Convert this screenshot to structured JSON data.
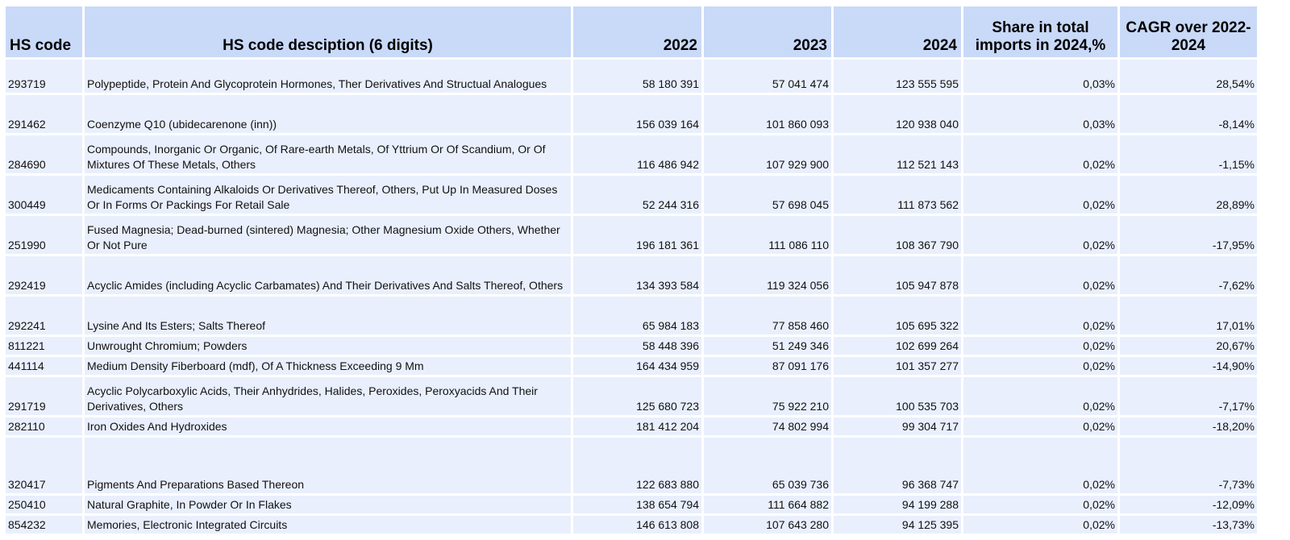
{
  "header": {
    "hs_code": "HS code",
    "description": "HS code desciption (6 digits)",
    "y2022": "2022",
    "y2023": "2023",
    "y2024": "2024",
    "share": "Share in total imports in 2024,%",
    "cagr": "CAGR over 2022-2024"
  },
  "rows": [
    {
      "code": "293719",
      "desc": "Polypeptide, Protein And Glycoprotein Hormones, Ther Derivatives And Structual Analogues",
      "v2022": "58 180 391",
      "v2023": "57 041 474",
      "v2024": "123 555 595",
      "share": "0,03%",
      "cagr": "28,54%"
    },
    {
      "code": "291462",
      "desc": "Coenzyme Q10 (ubidecarenone (inn))",
      "v2022": "156 039 164",
      "v2023": "101 860 093",
      "v2024": "120 938 040",
      "share": "0,03%",
      "cagr": "-8,14%"
    },
    {
      "code": "284690",
      "desc": "Compounds, Inorganic Or Organic, Of Rare-earth Metals, Of Yttrium Or Of Scandium, Or Of Mixtures Of These Metals, Others",
      "v2022": "116 486 942",
      "v2023": "107 929 900",
      "v2024": "112 521 143",
      "share": "0,02%",
      "cagr": "-1,15%"
    },
    {
      "code": "300449",
      "desc": "Medicaments Containing Alkaloids Or Derivatives Thereof, Others, Put Up In Measured Doses Or In Forms Or Packings For Retail Sale",
      "v2022": "52 244 316",
      "v2023": "57 698 045",
      "v2024": "111 873 562",
      "share": "0,02%",
      "cagr": "28,89%"
    },
    {
      "code": "251990",
      "desc": "Fused Magnesia; Dead-burned (sintered) Magnesia; Other Magnesium Oxide Others, Whether Or Not Pure",
      "v2022": "196 181 361",
      "v2023": "111 086 110",
      "v2024": "108 367 790",
      "share": "0,02%",
      "cagr": "-17,95%"
    },
    {
      "code": "292419",
      "desc": "Acyclic Amides (including Acyclic Carbamates) And Their Derivatives And Salts Thereof, Others",
      "v2022": "134 393 584",
      "v2023": "119 324 056",
      "v2024": "105 947 878",
      "share": "0,02%",
      "cagr": "-7,62%"
    },
    {
      "code": "292241",
      "desc": "Lysine And Its Esters; Salts Thereof",
      "v2022": "65 984 183",
      "v2023": "77 858 460",
      "v2024": "105 695 322",
      "share": "0,02%",
      "cagr": "17,01%"
    },
    {
      "code": "811221",
      "desc": "Unwrought Chromium; Powders",
      "v2022": "58 448 396",
      "v2023": "51 249 346",
      "v2024": "102 699 264",
      "share": "0,02%",
      "cagr": "20,67%"
    },
    {
      "code": "441114",
      "desc": "Medium Density Fiberboard (mdf), Of A Thickness Exceeding 9 Mm",
      "v2022": "164 434 959",
      "v2023": "87 091 176",
      "v2024": "101 357 277",
      "share": "0,02%",
      "cagr": "-14,90%"
    },
    {
      "code": "291719",
      "desc": "Acyclic Polycarboxylic Acids, Their Anhydrides, Halides, Peroxides, Peroxyacids And Their Derivatives, Others",
      "v2022": "125 680 723",
      "v2023": "75 922 210",
      "v2024": "100 535 703",
      "share": "0,02%",
      "cagr": "-7,17%"
    },
    {
      "code": "282110",
      "desc": "Iron Oxides And Hydroxides",
      "v2022": "181 412 204",
      "v2023": "74 802 994",
      "v2024": "99 304 717",
      "share": "0,02%",
      "cagr": "-18,20%"
    },
    {
      "code": "320417",
      "desc": "Pigments And Preparations Based Thereon",
      "v2022": "122 683 880",
      "v2023": "65 039 736",
      "v2024": "96 368 747",
      "share": "0,02%",
      "cagr": "-7,73%"
    },
    {
      "code": "250410",
      "desc": "Natural Graphite, In Powder Or In Flakes",
      "v2022": "138 654 794",
      "v2023": "111 664 882",
      "v2024": "94 199 288",
      "share": "0,02%",
      "cagr": "-12,09%"
    },
    {
      "code": "854232",
      "desc": "Memories, Electronic Integrated Circuits",
      "v2022": "146 613 808",
      "v2023": "107 643 280",
      "v2024": "94 125 395",
      "share": "0,02%",
      "cagr": "-13,73%"
    }
  ]
}
